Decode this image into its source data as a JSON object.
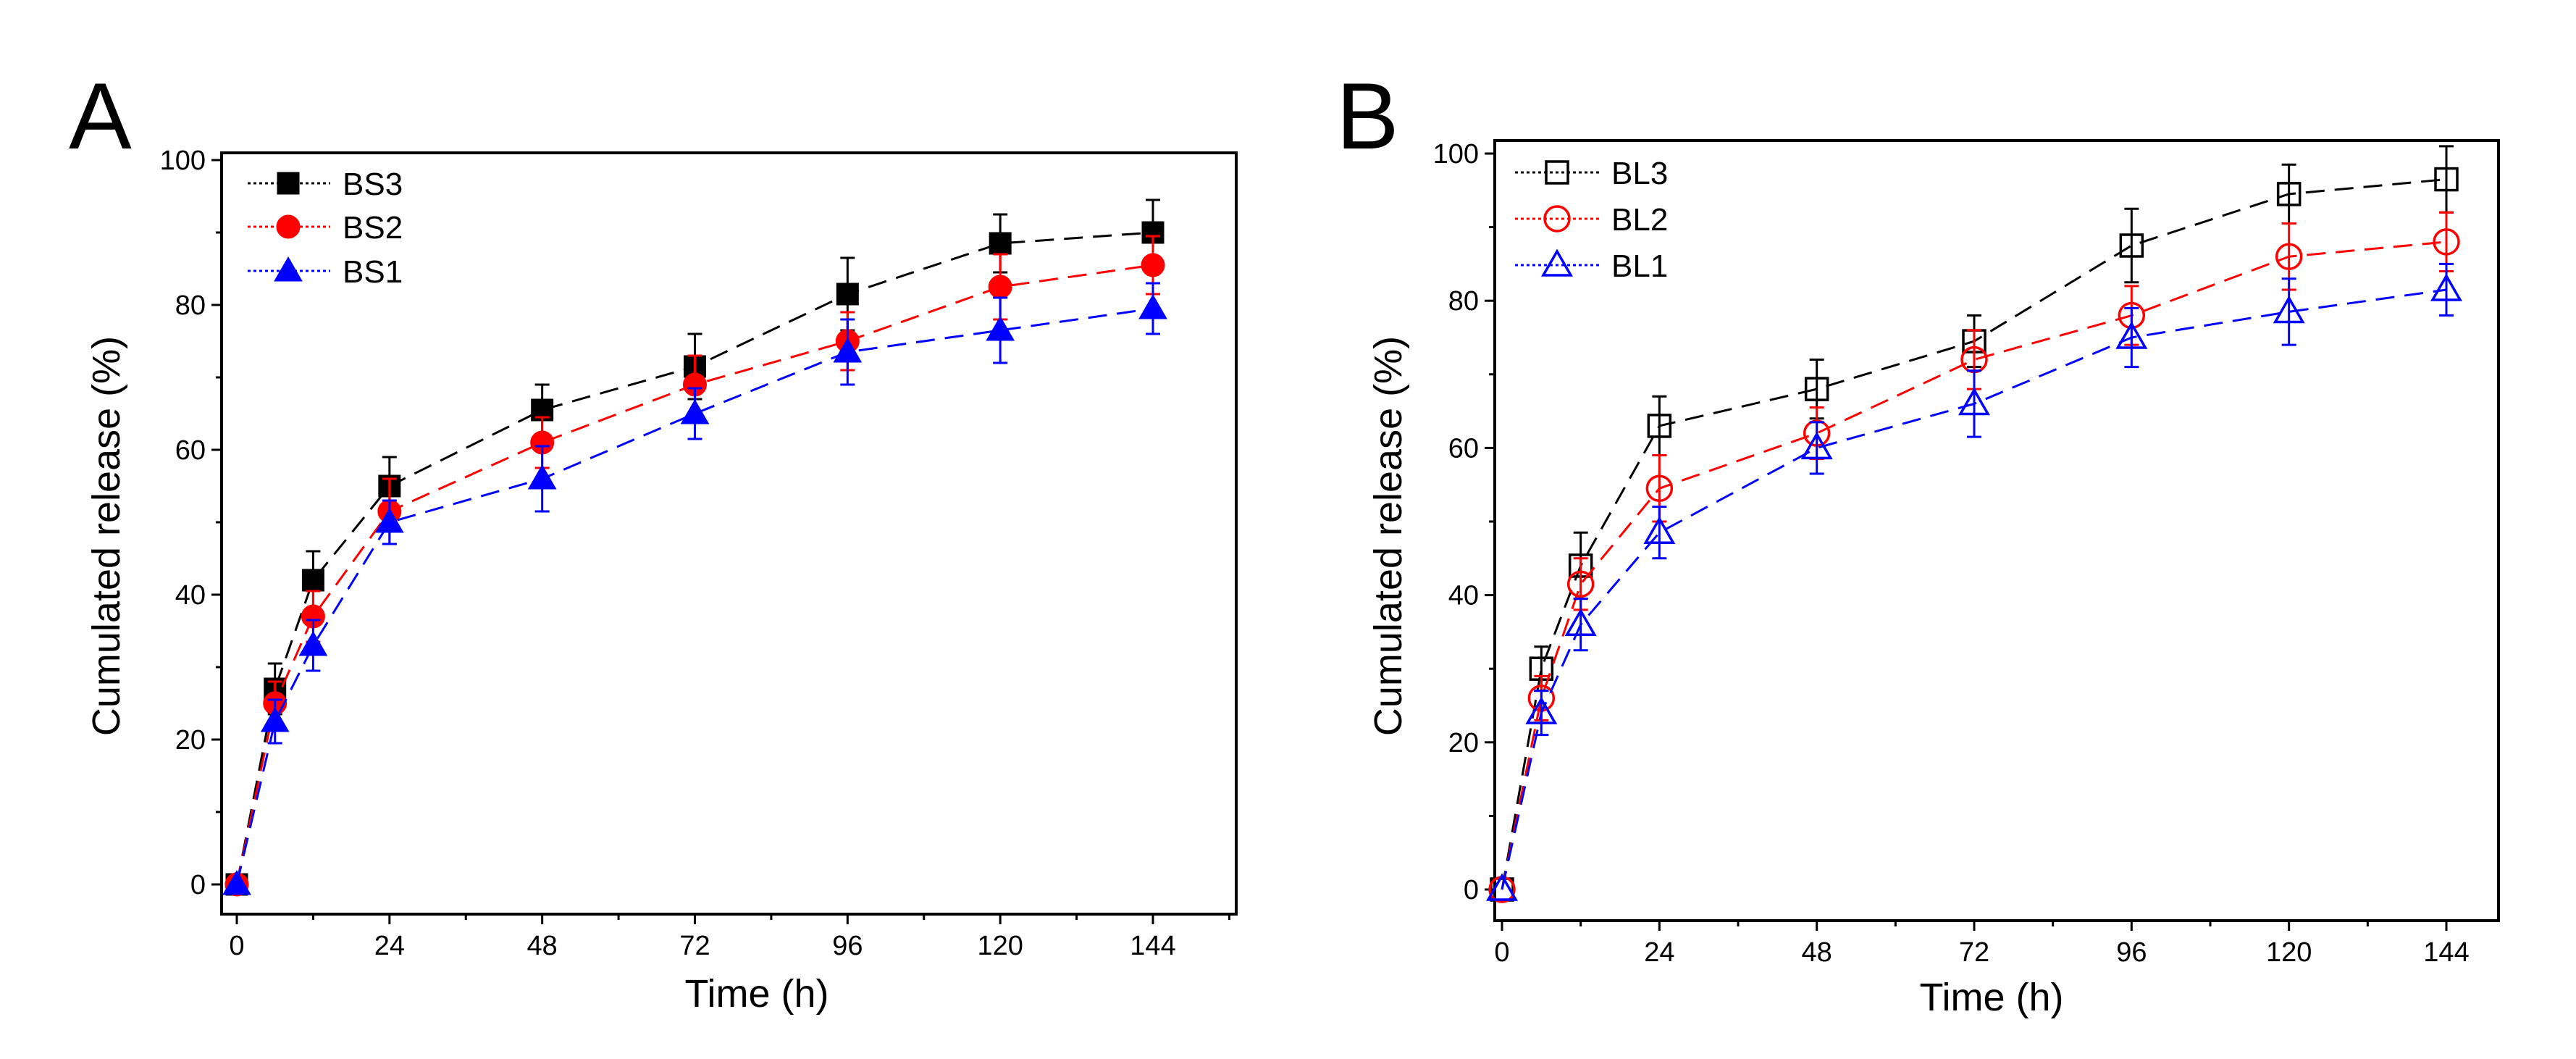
{
  "chart_data": [
    {
      "panel_label": "A",
      "type": "line",
      "xlabel": "Time (h)",
      "ylabel": "Cumulated release (%)",
      "xlim": [
        -2,
        160
      ],
      "ylim": [
        -3,
        104
      ],
      "xticks": [
        0,
        24,
        48,
        72,
        96,
        120,
        144
      ],
      "yticks": [
        0,
        20,
        40,
        60,
        80,
        100
      ],
      "legend_position": "top-left",
      "x": [
        0,
        6,
        12,
        24,
        48,
        72,
        96,
        120,
        144
      ],
      "series": [
        {
          "name": "BS3",
          "color": "#000000",
          "marker": "square-filled",
          "values": [
            0,
            27,
            42,
            55,
            65.5,
            71.5,
            81.5,
            88.5,
            90
          ],
          "errors": [
            0,
            3.5,
            4,
            4,
            3.5,
            4.5,
            5,
            4,
            4.5
          ]
        },
        {
          "name": "BS2",
          "color": "#ff0000",
          "marker": "circle-filled",
          "values": [
            0,
            25,
            37,
            51.5,
            61,
            69,
            75,
            82.5,
            85.5
          ],
          "errors": [
            0,
            3,
            3.5,
            4.5,
            3.5,
            4,
            4,
            4.5,
            4
          ]
        },
        {
          "name": "BS1",
          "color": "#0000ff",
          "marker": "triangle-filled",
          "values": [
            0,
            22.5,
            33,
            50,
            56,
            65,
            73.5,
            76.5,
            79.5
          ],
          "errors": [
            0,
            3,
            3.5,
            3,
            4.5,
            3.5,
            4.5,
            4.5,
            3.5
          ]
        }
      ]
    },
    {
      "panel_label": "B",
      "type": "line",
      "xlabel": "Time (h)",
      "ylabel": "Cumulated release (%)",
      "xlim": [
        -1,
        156
      ],
      "ylim": [
        -2,
        104
      ],
      "xticks": [
        0,
        24,
        48,
        72,
        96,
        120,
        144
      ],
      "yticks": [
        0,
        20,
        40,
        60,
        80,
        100
      ],
      "legend_position": "top-left",
      "x": [
        0,
        6,
        12,
        24,
        48,
        72,
        96,
        120,
        144
      ],
      "series": [
        {
          "name": "BL3",
          "color": "#000000",
          "marker": "square-open",
          "values": [
            0,
            30,
            44,
            63,
            68,
            74.5,
            87.5,
            94.5,
            96.5
          ],
          "errors": [
            0,
            3,
            4.5,
            4,
            4,
            3.5,
            5,
            4,
            4.5
          ]
        },
        {
          "name": "BL2",
          "color": "#ff0000",
          "marker": "circle-open",
          "values": [
            0,
            26,
            41.5,
            54.5,
            62,
            72,
            78,
            86,
            88
          ],
          "errors": [
            0,
            3,
            3.5,
            4.5,
            3.5,
            4,
            4,
            4.5,
            4
          ]
        },
        {
          "name": "BL1",
          "color": "#0000ff",
          "marker": "triangle-open",
          "values": [
            0,
            24,
            36,
            48.5,
            60,
            66,
            75,
            78.5,
            81.5
          ],
          "errors": [
            0,
            3,
            3.5,
            3.5,
            3.5,
            4.5,
            4,
            4.5,
            3.5
          ]
        }
      ]
    }
  ]
}
